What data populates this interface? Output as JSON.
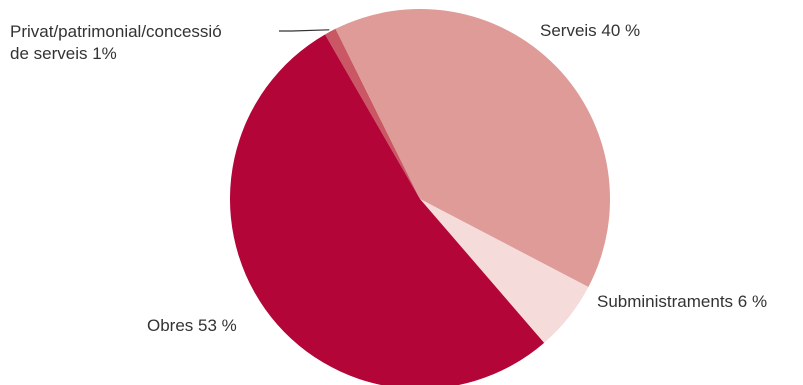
{
  "chart_data": {
    "type": "pie",
    "title": "",
    "slices": [
      {
        "label_lines": [
          "Privat/patrimonial/concessió",
          "de serveis 1%"
        ],
        "value": 1,
        "color": "#c95764"
      },
      {
        "label_lines": [
          "Serveis 40 %"
        ],
        "value": 40,
        "color": "#de9b98"
      },
      {
        "label_lines": [
          "Subministraments 6 %"
        ],
        "value": 6,
        "color": "#f5dcdb"
      },
      {
        "label_lines": [
          "Obres 53 %"
        ],
        "value": 53,
        "color": "#b30537"
      }
    ]
  }
}
